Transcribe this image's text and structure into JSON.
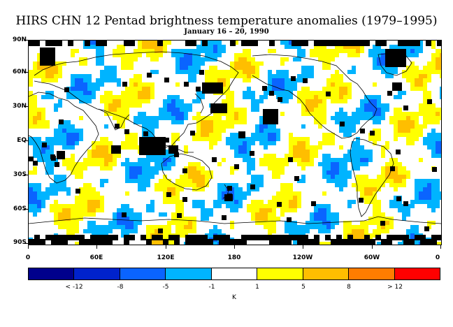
{
  "title": "HIRS CHN 12 Pentad brightness temperature anomalies (1979–1995)",
  "subtitle": "January 16 – 20, 1990",
  "lat_labels": [
    "90N",
    "60N",
    "30N",
    "EQ",
    "30S",
    "60S",
    "90S"
  ],
  "lon_labels": [
    "0",
    "60E",
    "120E",
    "180",
    "120W",
    "60W",
    "0"
  ],
  "colorbar": {
    "labels": [
      "< -12",
      "-8",
      "-5",
      "-1",
      "1",
      "5",
      "8",
      "> 12"
    ],
    "units": "K",
    "colors": [
      "#00008c",
      "#0022cc",
      "#0a64ff",
      "#00b4ff",
      "#ffffff",
      "#ffff00",
      "#ffbe00",
      "#ff7d00",
      "#ff0000"
    ]
  },
  "map": {
    "missing_color": "#000000",
    "coast_color": "#000000"
  }
}
